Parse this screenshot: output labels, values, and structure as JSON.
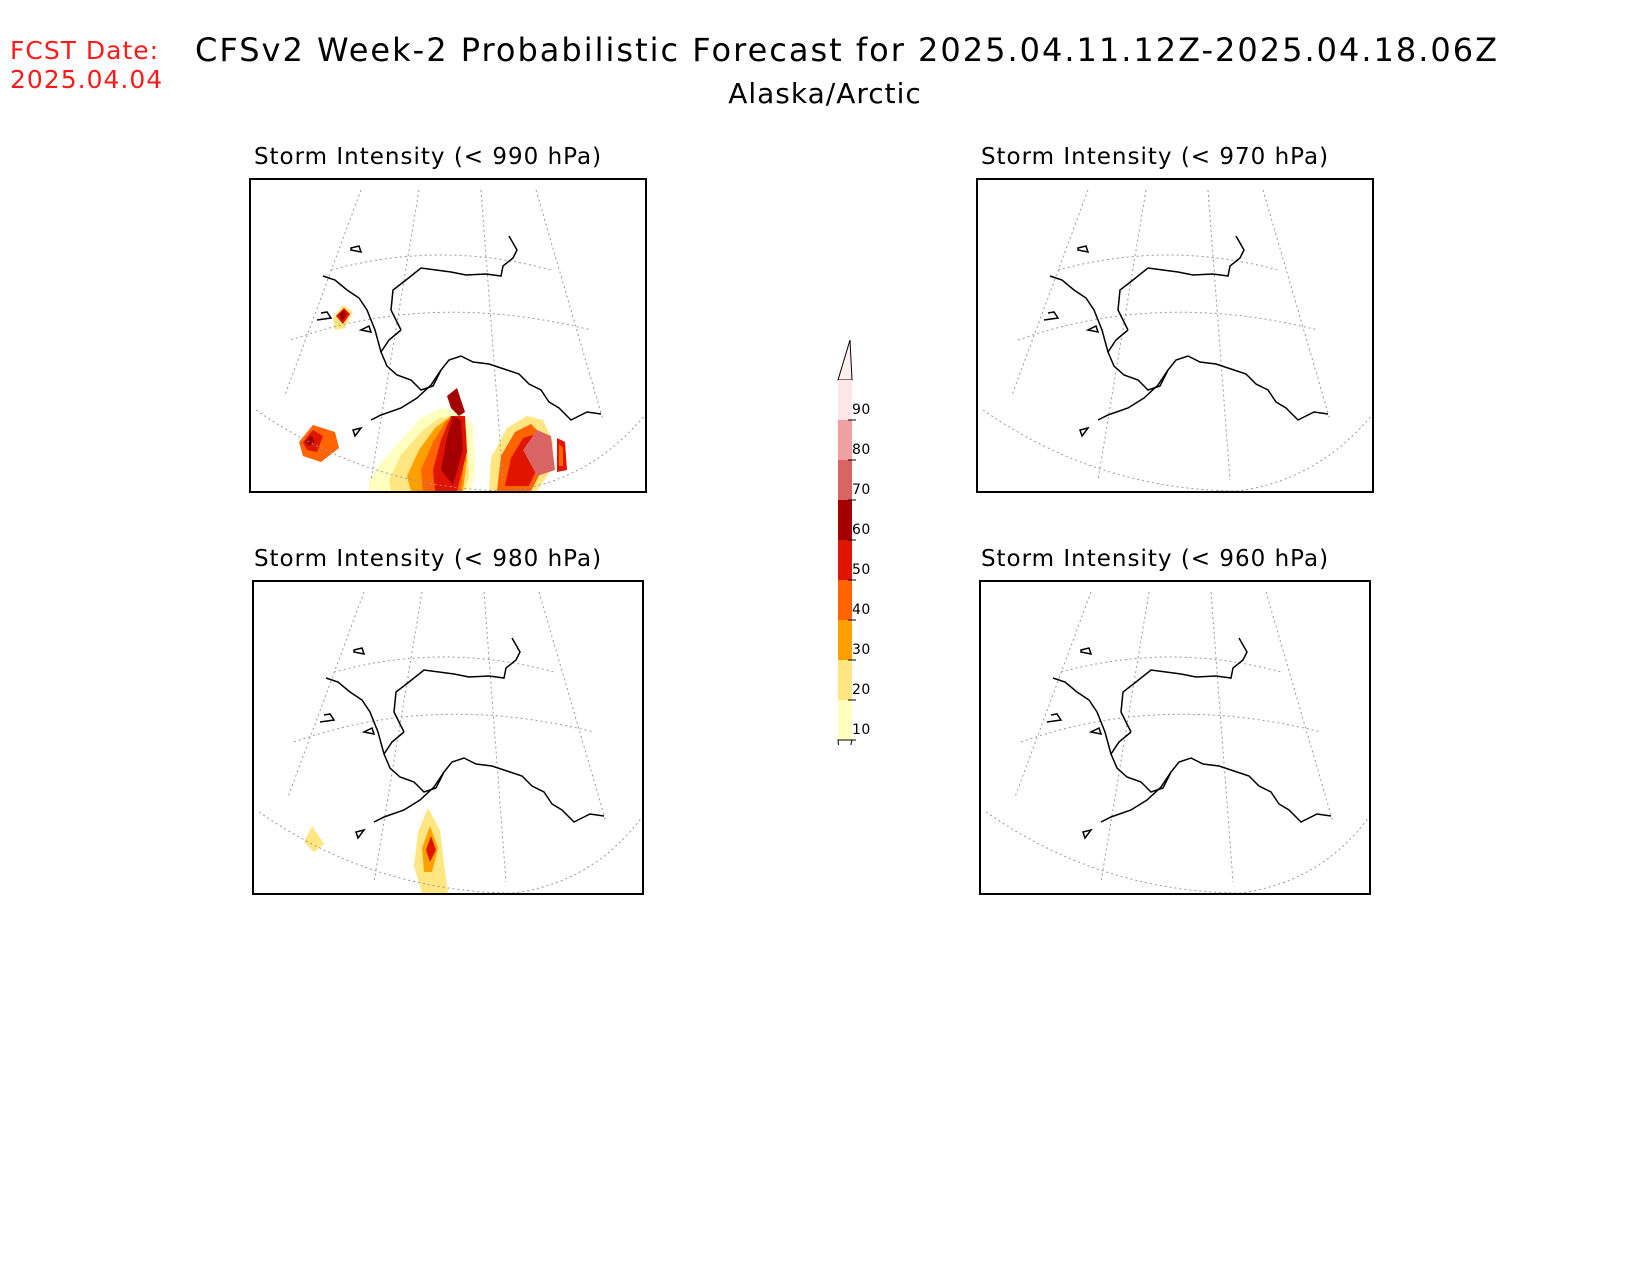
{
  "header": {
    "fcst_label": "FCST Date:",
    "fcst_date": "2025.04.04",
    "title": "CFSv2 Week-2 Probabilistic Forecast for 2025.04.11.12Z-2025.04.18.06Z",
    "subtitle": "Alaska/Arctic"
  },
  "panels": [
    {
      "title": "Storm Intensity (< 990 hPa)",
      "threshold_hPa": 990,
      "has_probability": true
    },
    {
      "title": "Storm Intensity (< 970 hPa)",
      "threshold_hPa": 970,
      "has_probability": false
    },
    {
      "title": "Storm Intensity (< 980 hPa)",
      "threshold_hPa": 980,
      "has_probability": true
    },
    {
      "title": "Storm Intensity (< 960 hPa)",
      "threshold_hPa": 960,
      "has_probability": false
    }
  ],
  "legend": {
    "ticks": [
      "10",
      "20",
      "30",
      "40",
      "50",
      "60",
      "70",
      "80",
      "90"
    ],
    "colors": [
      "#ffffc0",
      "#ffe680",
      "#ffa000",
      "#ff6400",
      "#e11400",
      "#a50000",
      "#d86464",
      "#f0a0a0",
      "#ffe6e6"
    ]
  }
}
